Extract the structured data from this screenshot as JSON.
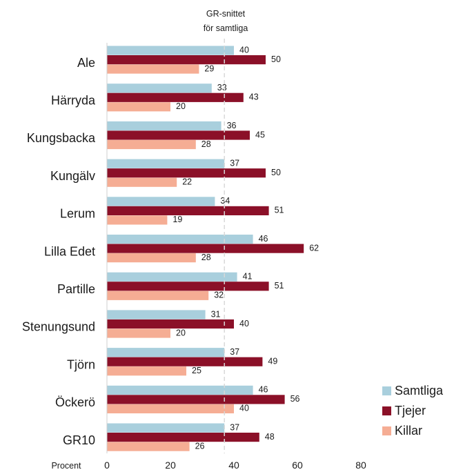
{
  "chart_data": {
    "type": "bar",
    "orientation": "horizontal",
    "categories": [
      "Ale",
      "Härryda",
      "Kungsbacka",
      "Kungälv",
      "Lerum",
      "Lilla Edet",
      "Partille",
      "Stenungsund",
      "Tjörn",
      "Öckerö",
      "GR10"
    ],
    "series": [
      {
        "name": "Samtliga",
        "color": "#a9cfdd",
        "values": [
          40,
          33,
          36,
          37,
          34,
          46,
          41,
          31,
          37,
          46,
          37
        ]
      },
      {
        "name": "Tjejer",
        "color": "#8b1028",
        "values": [
          50,
          43,
          45,
          50,
          51,
          62,
          51,
          40,
          49,
          56,
          48
        ]
      },
      {
        "name": "Killar",
        "color": "#f5ad94",
        "values": [
          29,
          20,
          28,
          22,
          19,
          28,
          32,
          20,
          25,
          40,
          26
        ]
      }
    ],
    "xlabel": "Procent",
    "xlim": [
      0,
      80
    ],
    "xticks": [
      0,
      20,
      40,
      60,
      80
    ],
    "reference_line": {
      "value": 37,
      "label_line1": "GR-snittet",
      "label_line2": "för samtliga",
      "style": "dashed"
    },
    "legend_position": "right",
    "grid": false
  }
}
